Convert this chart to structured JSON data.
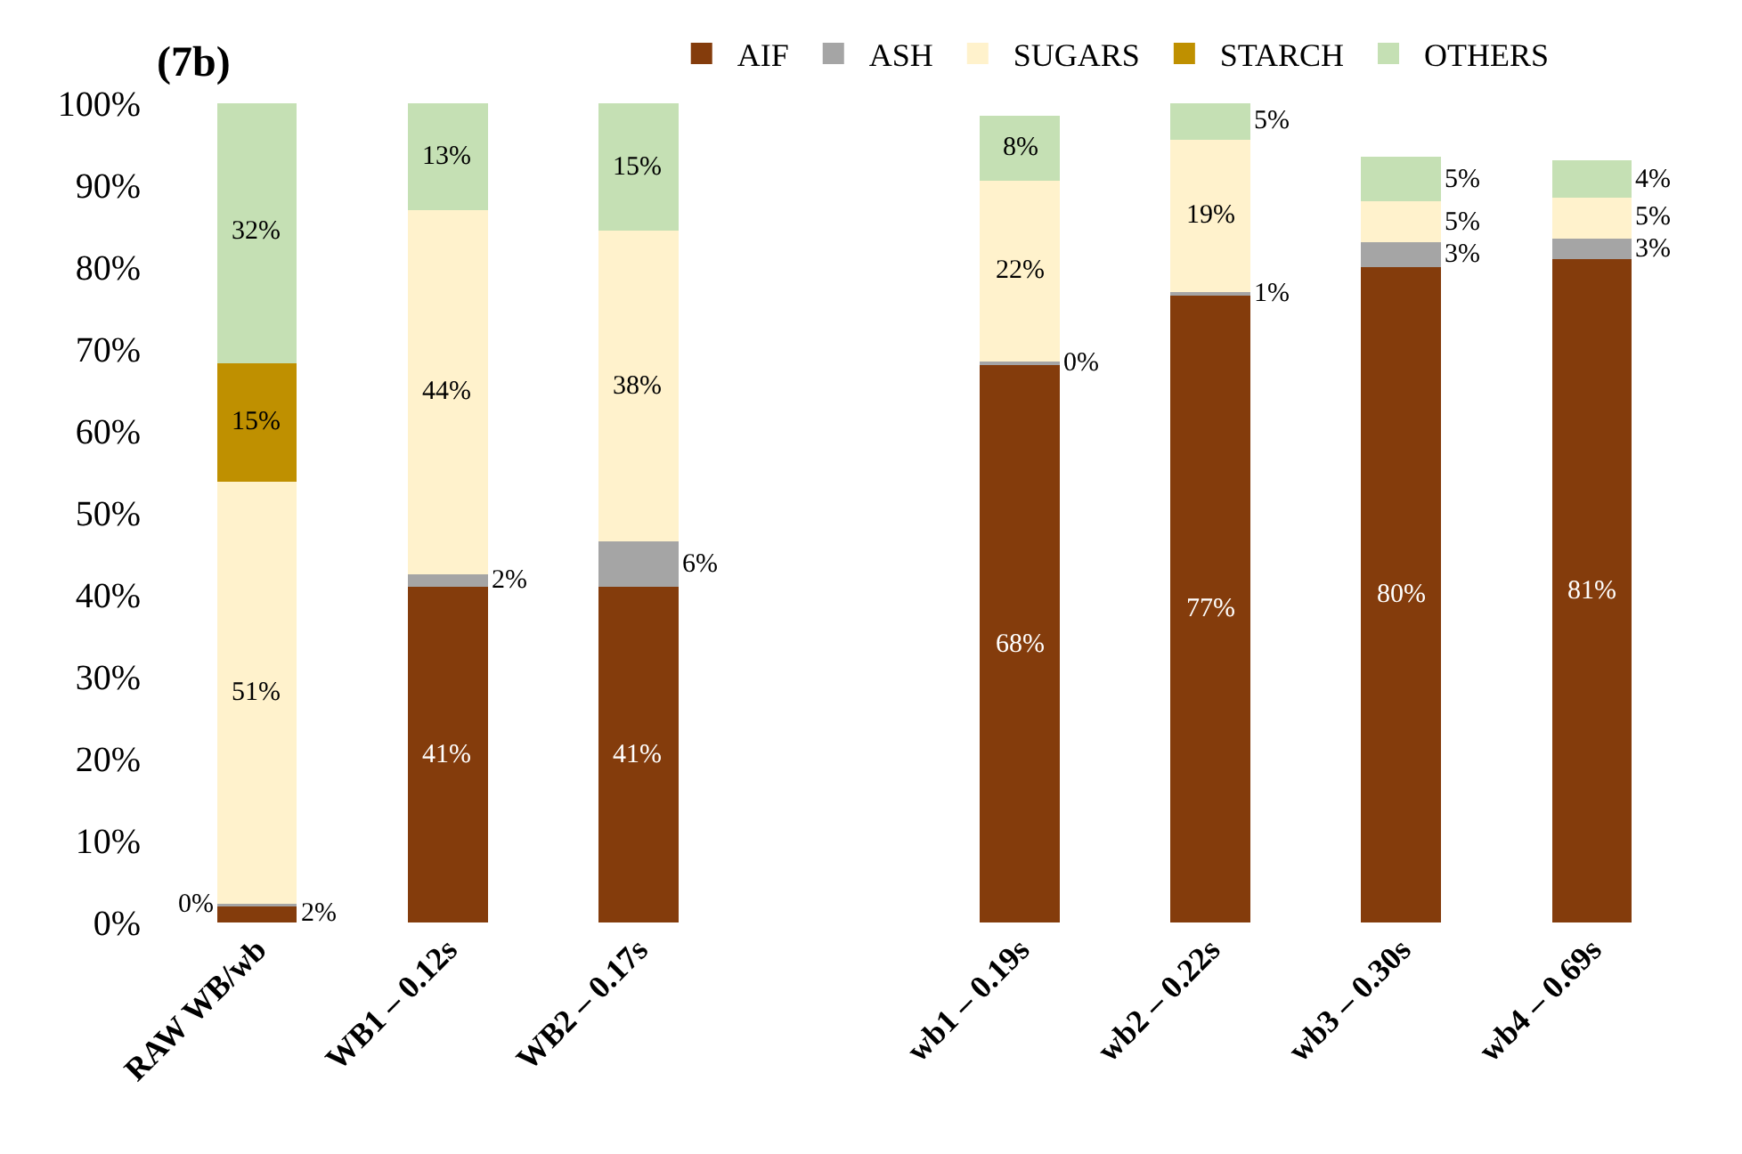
{
  "chart_data": {
    "type": "bar",
    "stacked": true,
    "title": "(7b)",
    "categories": [
      "RAW WB/wb",
      "WB1 – 0.12s",
      "WB2 – 0.17s",
      null,
      "wb1 – 0.19s",
      "wb2 – 0.22s",
      "wb3 – 0.30s",
      "wb4 – 0.69s"
    ],
    "series": [
      {
        "name": "AIF",
        "color": "#843c0c",
        "values": [
          2,
          41,
          41,
          null,
          68,
          76.5,
          80,
          81
        ],
        "value_labels": [
          "2%",
          "41%",
          "41%",
          null,
          "68%",
          "77%",
          "80%",
          "81%"
        ]
      },
      {
        "name": "ASH",
        "color": "#a5a5a5",
        "values": [
          0.3,
          1.5,
          5.5,
          null,
          0.5,
          0.5,
          3,
          2.5
        ],
        "value_labels": [
          "0%",
          "2%",
          "6%",
          null,
          "0%",
          "1%",
          "3%",
          "3%"
        ]
      },
      {
        "name": "SUGARS",
        "color": "#fff2cc",
        "values": [
          51.5,
          44.5,
          38,
          null,
          22,
          18.5,
          5,
          5
        ],
        "value_labels": [
          "51%",
          "44%",
          "38%",
          null,
          "22%",
          "19%",
          "5%",
          "5%"
        ]
      },
      {
        "name": "STARCH",
        "color": "#bf9000",
        "values": [
          14.5,
          0,
          0,
          null,
          0,
          0,
          0,
          0
        ],
        "value_labels": [
          "15%",
          null,
          null,
          null,
          null,
          null,
          null,
          null
        ]
      },
      {
        "name": "OTHERS",
        "color": "#c5e0b4",
        "values": [
          32,
          13,
          15.5,
          null,
          8,
          4.5,
          5.5,
          4.5
        ],
        "value_labels": [
          "32%",
          "13%",
          "15%",
          null,
          "8%",
          "5%",
          "5%",
          "4%"
        ]
      }
    ],
    "ylim": [
      0,
      100
    ],
    "yticks": [
      {
        "value": 0,
        "label": "0%"
      },
      {
        "value": 10,
        "label": "10%"
      },
      {
        "value": 20,
        "label": "20%"
      },
      {
        "value": 30,
        "label": "30%"
      },
      {
        "value": 40,
        "label": "40%"
      },
      {
        "value": 50,
        "label": "50%"
      },
      {
        "value": 60,
        "label": "60%"
      },
      {
        "value": 70,
        "label": "70%"
      },
      {
        "value": 80,
        "label": "80%"
      },
      {
        "value": 90,
        "label": "90%"
      },
      {
        "value": 100,
        "label": "100%"
      }
    ],
    "legend": "top"
  }
}
